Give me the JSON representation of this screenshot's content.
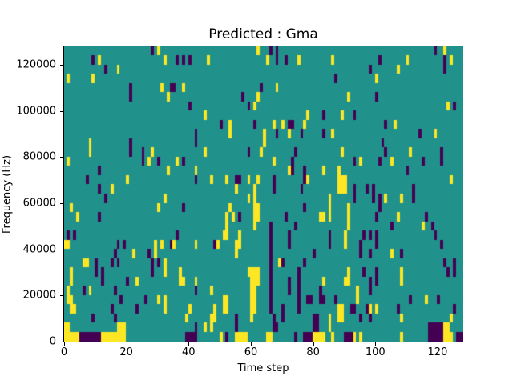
{
  "figure": {
    "background": "#ffffff",
    "text_color": "#000000"
  },
  "chart_data": {
    "type": "heatmap",
    "title": "Predicted : Gma",
    "xlabel": "Time step",
    "ylabel": "Frequency (Hz)",
    "x_range": [
      0,
      128
    ],
    "y_range": [
      0,
      128000
    ],
    "n_cols": 128,
    "n_rows": 32,
    "x_ticks": [
      0,
      20,
      40,
      60,
      80,
      100,
      120
    ],
    "y_ticks": [
      0,
      20000,
      40000,
      60000,
      80000,
      100000,
      120000
    ],
    "grid": false,
    "legend": "none",
    "colormap": "viridis",
    "value_colors": {
      "min": "#440154",
      "mid": "#21918c",
      "max": "#fde725"
    },
    "row_order": "top-to-bottom (row 0 = 124000-128000 Hz, last row = 0-4000 Hz)",
    "cell_values": "y = max (yellow), d = min (dark purple), all other cells = mid (teal)",
    "rows": [
      {
        "y": [
          30,
          62,
          122
        ],
        "d": [
          28,
          66,
          68,
          119
        ]
      },
      {
        "y": [
          11,
          32,
          46,
          65,
          75,
          86,
          110,
          124
        ],
        "d": [
          9,
          36,
          38,
          40,
          68,
          71,
          101,
          122
        ]
      },
      {
        "y": [
          17,
          107
        ],
        "d": [
          13,
          98,
          122
        ]
      },
      {
        "y": [
          1,
          9,
          100
        ],
        "d": [
          87
        ]
      },
      {
        "y": [
          31,
          38,
          68
        ],
        "d": [
          21,
          34,
          35,
          63
        ]
      },
      {
        "y": [
          33,
          62,
          91
        ],
        "d": [
          21,
          57,
          100
        ]
      },
      {
        "y": [
          61,
          123
        ],
        "d": [
          40,
          59,
          125
        ]
      },
      {
        "y": [
          45,
          78,
          89
        ],
        "d": [
          83,
          93
        ]
      },
      {
        "y": [
          53,
          67,
          70,
          77,
          106
        ],
        "d": [
          50,
          61,
          72,
          73,
          103
        ]
      },
      {
        "y": [
          53,
          64,
          72,
          86,
          119
        ],
        "d": [
          42,
          68,
          76,
          83,
          114
        ]
      },
      {
        "y": [
          8,
          64
        ],
        "d": [
          21,
          42,
          102
        ]
      },
      {
        "y": [
          8,
          28,
          45,
          63,
          89,
          111
        ],
        "d": [
          21,
          25,
          59,
          74,
          103,
          121
        ]
      },
      {
        "y": [
          1,
          27,
          36,
          67,
          95,
          105
        ],
        "d": [
          25,
          30,
          38,
          73,
          93,
          101,
          115,
          121
        ]
      },
      {
        "y": [
          33,
          42,
          72,
          83,
          88
        ],
        "d": [
          11,
          73,
          77,
          110
        ]
      },
      {
        "y": [
          20,
          47,
          52,
          59,
          62,
          78,
          88,
          89,
          90,
          124
        ],
        "d": [
          7,
          42,
          55,
          56,
          67,
          77
        ]
      },
      {
        "y": [
          15,
          55,
          61,
          88,
          89,
          90
        ],
        "d": [
          11,
          67,
          76,
          93,
          97,
          99,
          112
        ]
      },
      {
        "y": [
          32,
          59,
          61,
          85,
          103,
          108
        ],
        "d": [
          13,
          93,
          99,
          101,
          112
        ]
      },
      {
        "y": [
          2,
          30,
          53,
          61,
          62,
          85,
          91
        ],
        "d": [
          38,
          77,
          101
        ]
      },
      {
        "y": [
          4,
          52,
          54,
          61,
          62,
          82,
          83,
          85,
          91,
          107
        ],
        "d": [
          11,
          56,
          71,
          100,
          116
        ]
      },
      {
        "y": [
          52,
          61,
          91,
          115
        ],
        "d": [
          66,
          74,
          105,
          118
        ]
      },
      {
        "y": [
          51,
          52,
          56,
          90
        ],
        "d": [
          1,
          3,
          36,
          66,
          72,
          85,
          96,
          98,
          100,
          119
        ]
      },
      {
        "y": [
          0,
          1,
          29,
          31,
          35,
          42,
          49,
          55,
          56,
          90
        ],
        "d": [
          17,
          19,
          34,
          48,
          66,
          72,
          85,
          95,
          100,
          121
        ]
      },
      {
        "y": [
          22,
          29,
          55,
          105
        ],
        "d": [
          16,
          27,
          66,
          80,
          95,
          98,
          108
        ]
      },
      {
        "y": [
          6,
          7,
          32,
          69
        ],
        "d": [
          10,
          15,
          17,
          28,
          30,
          66,
          70,
          77,
          122,
          125
        ]
      },
      {
        "y": [
          2,
          32,
          37,
          59,
          60,
          61,
          62,
          91,
          108
        ],
        "d": [
          10,
          12,
          28,
          66,
          75,
          96,
          100,
          123,
          125
        ]
      },
      {
        "y": [
          2,
          23,
          37,
          38,
          42,
          60,
          61,
          62,
          83,
          90,
          91,
          108
        ],
        "d": [
          12,
          20,
          66,
          72,
          75,
          98,
          100
        ]
      },
      {
        "y": [
          1,
          8,
          47,
          60,
          61,
          94
        ],
        "d": [
          6,
          16,
          42,
          66,
          72,
          75,
          82,
          98
        ]
      },
      {
        "y": [
          1,
          2,
          30,
          32,
          51,
          52,
          60,
          61,
          94,
          116
        ],
        "d": [
          18,
          26,
          66,
          75,
          78,
          79,
          82,
          83,
          87,
          111,
          120
        ]
      },
      {
        "y": [
          2,
          3,
          32,
          40,
          48,
          51,
          52,
          60,
          61,
          88,
          89,
          98,
          100
        ],
        "d": [
          15,
          23,
          66,
          70,
          75,
          92,
          93,
          97,
          107,
          125
        ]
      },
      {
        "y": [
          39,
          47,
          48,
          60,
          85,
          88,
          89,
          108,
          124
        ],
        "d": [
          9,
          16,
          55,
          67,
          70,
          80,
          81,
          95,
          98
        ]
      },
      {
        "y": [
          0,
          1,
          17,
          18,
          19,
          45,
          47,
          85,
          122,
          123
        ],
        "d": [
          42,
          55,
          67,
          68,
          80,
          81,
          117,
          118,
          119,
          120,
          121
        ]
      },
      {
        "y": [
          0,
          1,
          2,
          3,
          4,
          12,
          13,
          14,
          15,
          16,
          17,
          18,
          19,
          50,
          55,
          56,
          57,
          58,
          65,
          66,
          80,
          81,
          82,
          83,
          86,
          93,
          95,
          108,
          122,
          123,
          124
        ],
        "d": [
          5,
          6,
          7,
          8,
          9,
          10,
          11,
          39,
          40,
          41,
          42,
          52,
          74,
          77,
          78,
          79,
          90,
          91,
          92,
          117,
          118,
          119,
          120,
          121,
          126,
          127
        ]
      }
    ]
  }
}
